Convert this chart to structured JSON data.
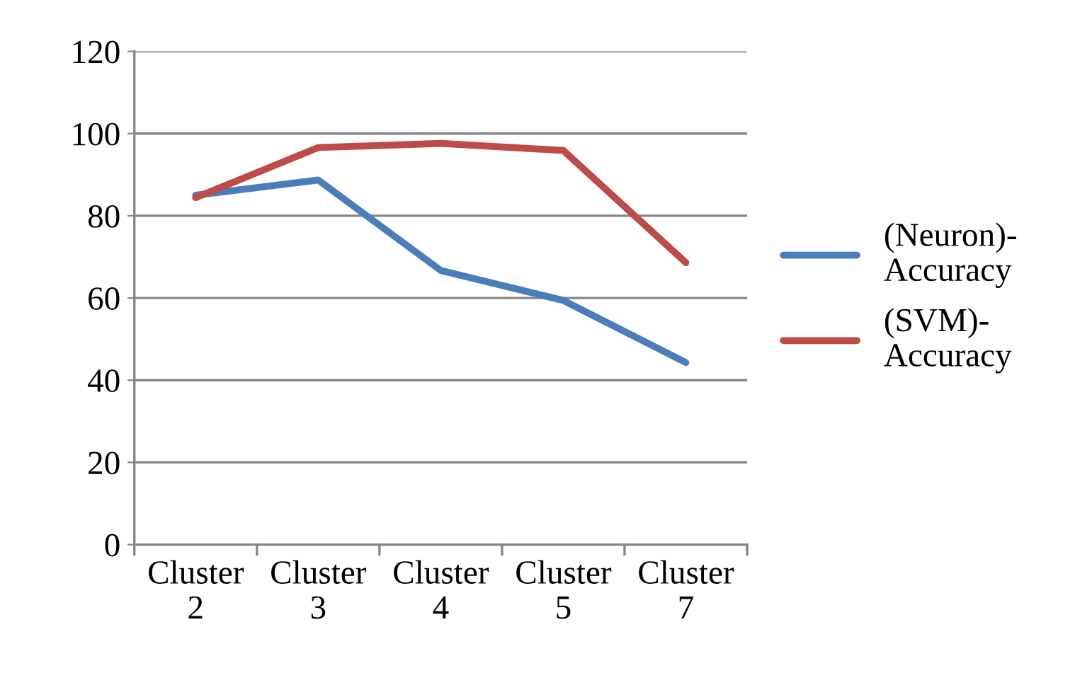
{
  "chart_data": {
    "type": "line",
    "categories": [
      "Cluster 2",
      "Cluster 3",
      "Cluster 4",
      "Cluster 5",
      "Cluster 7"
    ],
    "series": [
      {
        "name": "(Neuron)-Accuracy",
        "color": "#4a7ebb",
        "values": [
          85,
          88.7,
          66.7,
          59.4,
          44.3
        ]
      },
      {
        "name": "(SVM)-Accuracy",
        "color": "#be4b48",
        "values": [
          84.4,
          96.6,
          97.6,
          95.9,
          68.6
        ]
      }
    ],
    "ylim": [
      0,
      120
    ],
    "yticks": [
      0,
      20,
      40,
      60,
      80,
      100,
      120
    ],
    "grid": "y",
    "legend": "right",
    "marker": "none",
    "line_style": "solid"
  }
}
